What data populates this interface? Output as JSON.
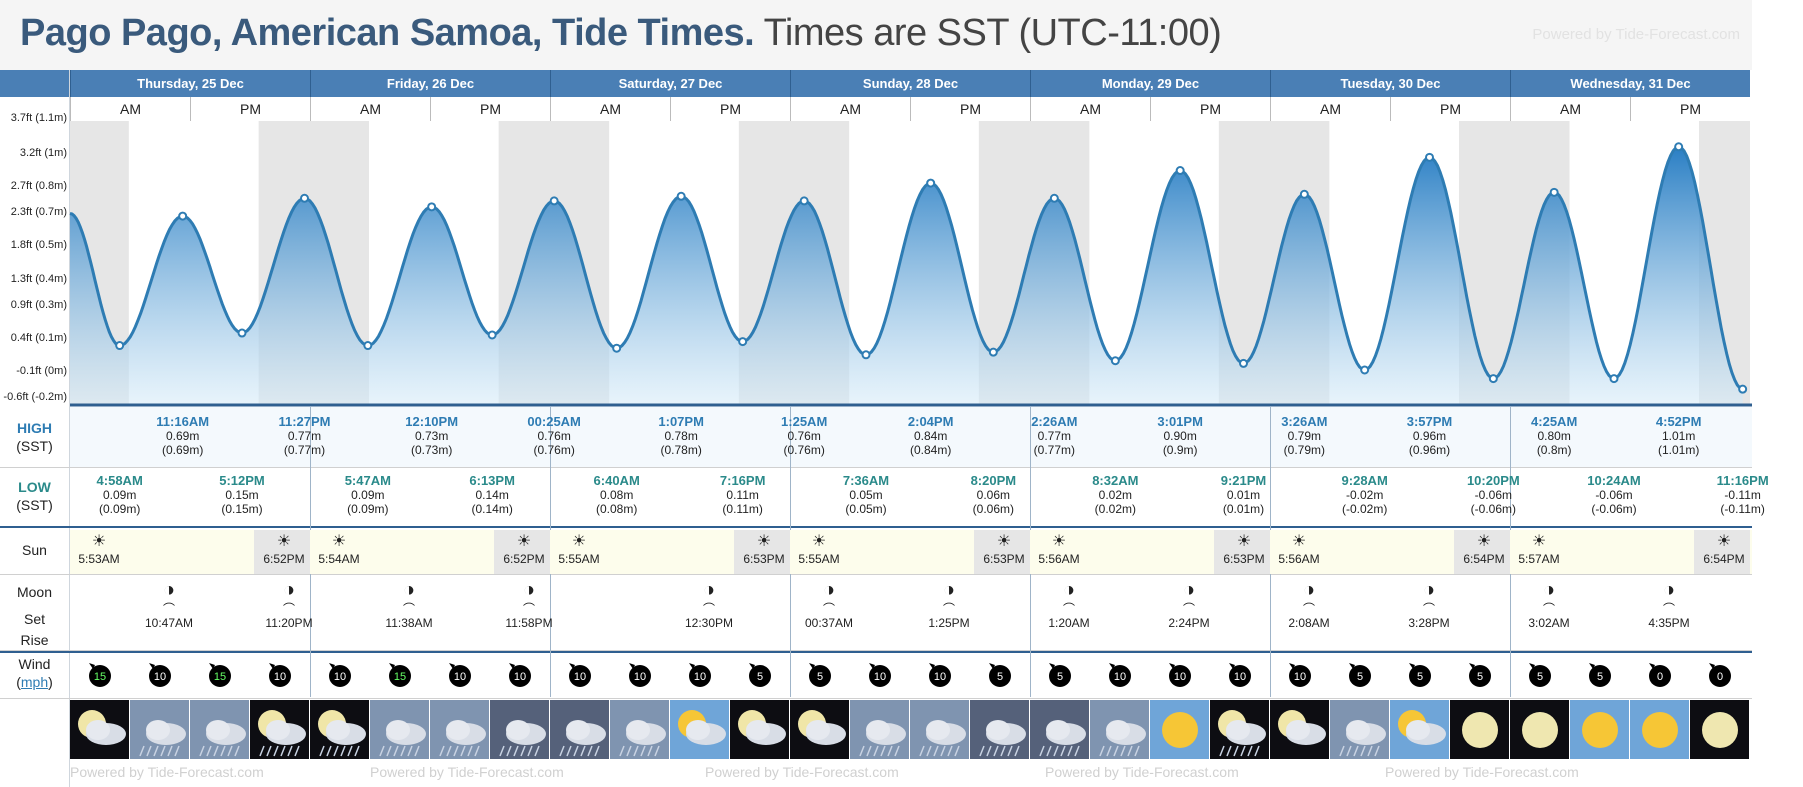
{
  "header": {
    "title_place": "Pago Pago, American Samoa, Tide Times.",
    "title_zone": "Times are SST (UTC-11:00)",
    "powered": "Powered by Tide-Forecast.com"
  },
  "days": [
    "Thursday, 25 Dec",
    "Friday, 26 Dec",
    "Saturday, 27 Dec",
    "Sunday, 28 Dec",
    "Monday, 29 Dec",
    "Tuesday, 30 Dec",
    "Wednesday, 31 Dec"
  ],
  "ampm": [
    "AM",
    "PM"
  ],
  "row_labels": {
    "high": "HIGH",
    "low": "LOW",
    "sst": "(SST)",
    "sun": "Sun",
    "moon": "Moon",
    "set": "Set",
    "rise": "Rise",
    "wind": "Wind",
    "mph": "mph"
  },
  "y_axis_labels": [
    "3.7ft (1.1m)",
    "3.2ft (1m)",
    "2.7ft (0.8m)",
    "2.3ft (0.7m)",
    "1.8ft (0.5m)",
    "1.3ft (0.4m)",
    "0.9ft (0.3m)",
    "0.4ft (0.1m)",
    "-0.1ft (0m)",
    "-0.6ft (-0.2m)"
  ],
  "high_tides": [
    {
      "time": "11:16AM",
      "ft": "0.69m",
      "m": "(0.69m)"
    },
    {
      "time": "11:27PM",
      "ft": "0.77m",
      "m": "(0.77m)"
    },
    {
      "time": "12:10PM",
      "ft": "0.73m",
      "m": "(0.73m)"
    },
    {
      "time": "00:25AM",
      "ft": "0.76m",
      "m": "(0.76m)"
    },
    {
      "time": "1:07PM",
      "ft": "0.78m",
      "m": "(0.78m)"
    },
    {
      "time": "1:25AM",
      "ft": "0.76m",
      "m": "(0.76m)"
    },
    {
      "time": "2:04PM",
      "ft": "0.84m",
      "m": "(0.84m)"
    },
    {
      "time": "2:26AM",
      "ft": "0.77m",
      "m": "(0.77m)"
    },
    {
      "time": "3:01PM",
      "ft": "0.90m",
      "m": "(0.9m)"
    },
    {
      "time": "3:26AM",
      "ft": "0.79m",
      "m": "(0.79m)"
    },
    {
      "time": "3:57PM",
      "ft": "0.96m",
      "m": "(0.96m)"
    },
    {
      "time": "4:25AM",
      "ft": "0.80m",
      "m": "(0.8m)"
    },
    {
      "time": "4:52PM",
      "ft": "1.01m",
      "m": "(1.01m)"
    }
  ],
  "low_tides": [
    {
      "time": "4:58AM",
      "ft": "0.09m",
      "m": "(0.09m)"
    },
    {
      "time": "5:12PM",
      "ft": "0.15m",
      "m": "(0.15m)"
    },
    {
      "time": "5:47AM",
      "ft": "0.09m",
      "m": "(0.09m)"
    },
    {
      "time": "6:13PM",
      "ft": "0.14m",
      "m": "(0.14m)"
    },
    {
      "time": "6:40AM",
      "ft": "0.08m",
      "m": "(0.08m)"
    },
    {
      "time": "7:16PM",
      "ft": "0.11m",
      "m": "(0.11m)"
    },
    {
      "time": "7:36AM",
      "ft": "0.05m",
      "m": "(0.05m)"
    },
    {
      "time": "8:20PM",
      "ft": "0.06m",
      "m": "(0.06m)"
    },
    {
      "time": "8:32AM",
      "ft": "0.02m",
      "m": "(0.02m)"
    },
    {
      "time": "9:21PM",
      "ft": "0.01m",
      "m": "(0.01m)"
    },
    {
      "time": "9:28AM",
      "ft": "-0.02m",
      "m": "(-0.02m)"
    },
    {
      "time": "10:20PM",
      "ft": "-0.06m",
      "m": "(-0.06m)"
    },
    {
      "time": "10:24AM",
      "ft": "-0.06m",
      "m": "(-0.06m)"
    },
    {
      "time": "11:16PM",
      "ft": "-0.11m",
      "m": "(-0.11m)"
    }
  ],
  "sun": [
    {
      "time": "5:53AM"
    },
    {
      "time": "6:52PM"
    },
    {
      "time": "5:54AM"
    },
    {
      "time": "6:52PM"
    },
    {
      "time": "5:55AM"
    },
    {
      "time": "6:53PM"
    },
    {
      "time": "5:55AM"
    },
    {
      "time": "6:53PM"
    },
    {
      "time": "5:56AM"
    },
    {
      "time": "6:53PM"
    },
    {
      "time": "5:56AM"
    },
    {
      "time": "6:54PM"
    },
    {
      "time": "5:57AM"
    },
    {
      "time": "6:54PM"
    }
  ],
  "moon": [
    {
      "time": "10:47AM"
    },
    {
      "time": "11:20PM"
    },
    {
      "time": "11:38AM"
    },
    {
      "time": "11:58PM"
    },
    {
      "time": "12:30PM"
    },
    {
      "time": "00:37AM"
    },
    {
      "time": "1:25PM"
    },
    {
      "time": "1:20AM"
    },
    {
      "time": "2:24PM"
    },
    {
      "time": "2:08AM"
    },
    {
      "time": "3:28PM"
    },
    {
      "time": "3:02AM"
    },
    {
      "time": "4:35PM"
    }
  ],
  "wind": [
    "15",
    "10",
    "15",
    "10",
    "10",
    "15",
    "10",
    "10",
    "10",
    "10",
    "10",
    "5",
    "5",
    "10",
    "10",
    "5",
    "5",
    "10",
    "10",
    "10",
    "10",
    "5",
    "5",
    "5",
    "5",
    "5",
    "0",
    "0"
  ],
  "weather_icons": [
    "night-cloudy",
    "rain",
    "rain",
    "night-rain",
    "night-cloudy-rain",
    "rain",
    "rain",
    "storm",
    "storm",
    "rain",
    "sun-cloud",
    "night-cloudy",
    "night-cloudy",
    "rain",
    "rain",
    "storm",
    "storm",
    "rain",
    "sunny",
    "night-rain",
    "night-cloudy",
    "rain",
    "sun-cloud",
    "night-clear",
    "night-clear",
    "sunny",
    "sunny",
    "night-clear"
  ],
  "chart_data": {
    "type": "area",
    "title": "Pago Pago, American Samoa, Tide Times.",
    "ylabel": "",
    "ylim_ft": [
      -0.6,
      3.7
    ],
    "units": "ft",
    "series": [
      {
        "name": "",
        "points": [
          {
            "t": "Thursday, 25 Dec 00:00",
            "ft": 2.3
          },
          {
            "t": "Thursday, 25 Dec 04:58",
            "ft": 0.3
          },
          {
            "t": "Thursday, 25 Dec 11:16",
            "ft": 2.26
          },
          {
            "t": "Thursday, 25 Dec 17:12",
            "ft": 0.49
          },
          {
            "t": "Thursday, 25 Dec 23:27",
            "ft": 2.53
          },
          {
            "t": "Friday, 26 Dec 05:47",
            "ft": 0.3
          },
          {
            "t": "Friday, 26 Dec 12:10",
            "ft": 2.4
          },
          {
            "t": "Friday, 26 Dec 18:13",
            "ft": 0.46
          },
          {
            "t": "Saturday, 27 Dec 00:25",
            "ft": 2.49
          },
          {
            "t": "Saturday, 27 Dec 06:40",
            "ft": 0.26
          },
          {
            "t": "Saturday, 27 Dec 13:07",
            "ft": 2.56
          },
          {
            "t": "Saturday, 27 Dec 19:16",
            "ft": 0.36
          },
          {
            "t": "Sunday, 28 Dec 01:25",
            "ft": 2.49
          },
          {
            "t": "Sunday, 28 Dec 07:36",
            "ft": 0.16
          },
          {
            "t": "Sunday, 28 Dec 14:04",
            "ft": 2.76
          },
          {
            "t": "Sunday, 28 Dec 20:20",
            "ft": 0.2
          },
          {
            "t": "Monday, 29 Dec 02:26",
            "ft": 2.53
          },
          {
            "t": "Monday, 29 Dec 08:32",
            "ft": 0.07
          },
          {
            "t": "Monday, 29 Dec 15:01",
            "ft": 2.95
          },
          {
            "t": "Monday, 29 Dec 21:21",
            "ft": 0.03
          },
          {
            "t": "Tuesday, 30 Dec 03:26",
            "ft": 2.59
          },
          {
            "t": "Tuesday, 30 Dec 09:28",
            "ft": -0.07
          },
          {
            "t": "Tuesday, 30 Dec 15:57",
            "ft": 3.15
          },
          {
            "t": "Tuesday, 30 Dec 22:20",
            "ft": -0.2
          },
          {
            "t": "Wednesday, 31 Dec 04:25",
            "ft": 2.62
          },
          {
            "t": "Wednesday, 31 Dec 10:24",
            "ft": -0.2
          },
          {
            "t": "Wednesday, 31 Dec 16:52",
            "ft": 3.31
          },
          {
            "t": "Wednesday, 31 Dec 23:16",
            "ft": -0.36
          }
        ]
      }
    ]
  },
  "colors": {
    "header_blue": "#4a7fb5",
    "title_blue": "#3a5a7c",
    "tide_line": "#2e7cb3",
    "night_shade": "#e6e6e6",
    "day_band": "#fdfdec"
  }
}
